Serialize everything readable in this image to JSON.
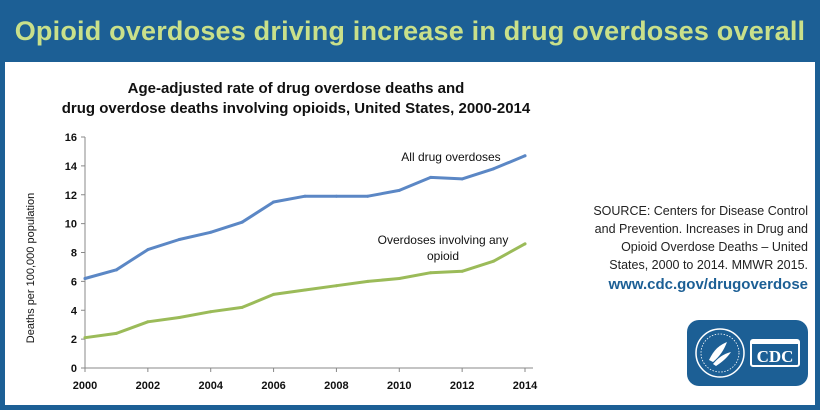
{
  "banner": {
    "title": "Opioid overdoses driving increase in drug overdoses overall"
  },
  "chart_data": {
    "type": "line",
    "title_line1": "Age-adjusted rate of drug overdose deaths and",
    "title_line2": "drug overdose deaths involving opioids, United States, 2000-2014",
    "xlabel": "",
    "ylabel": "Deaths per 100,000 population",
    "xlim": [
      2000,
      2014
    ],
    "ylim": [
      0,
      16
    ],
    "x_ticks": [
      "2000",
      "2002",
      "2004",
      "2006",
      "2008",
      "2010",
      "2012",
      "2014"
    ],
    "y_ticks": [
      "0",
      "2",
      "4",
      "6",
      "8",
      "10",
      "12",
      "14",
      "16"
    ],
    "grid": false,
    "x": [
      2000,
      2001,
      2002,
      2003,
      2004,
      2005,
      2006,
      2007,
      2008,
      2009,
      2010,
      2011,
      2012,
      2013,
      2014
    ],
    "series": [
      {
        "name": "All drug overdoses",
        "color": "#5b87c5",
        "values": [
          6.2,
          6.8,
          8.2,
          8.9,
          9.4,
          10.1,
          11.5,
          11.9,
          11.9,
          11.9,
          12.3,
          13.2,
          13.1,
          13.8,
          14.7
        ]
      },
      {
        "name_line1": "Overdoses involving any",
        "name_line2": "opioid",
        "color": "#9bbb59",
        "values": [
          2.1,
          2.4,
          3.2,
          3.5,
          3.9,
          4.2,
          5.1,
          5.4,
          5.7,
          6.0,
          6.2,
          6.6,
          6.7,
          7.4,
          8.6
        ]
      }
    ]
  },
  "source": {
    "text": "SOURCE: Centers for Disease Control and Prevention. Increases in Drug and Opioid Overdose Deaths – United States, 2000 to 2014. MMWR 2015."
  },
  "url": "www.cdc.gov/drugoverdose",
  "logo": {
    "text": "CDC"
  }
}
